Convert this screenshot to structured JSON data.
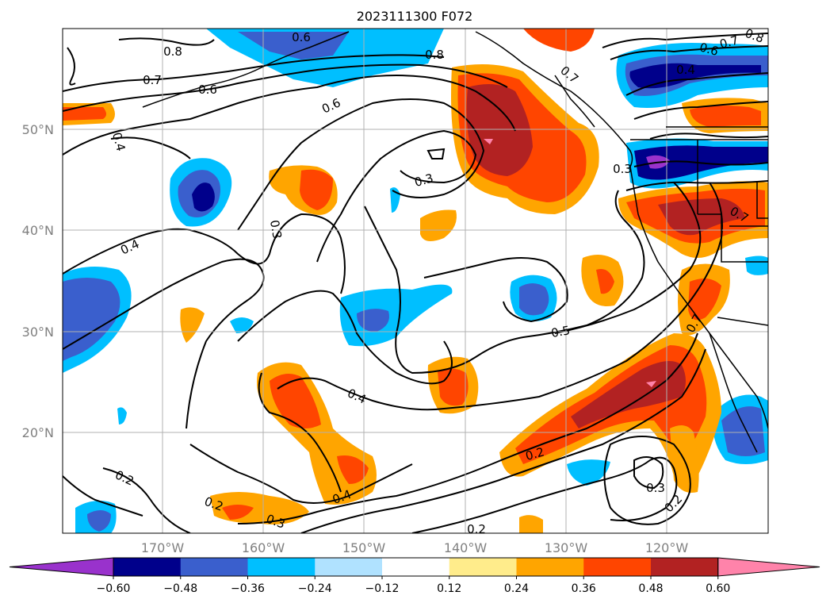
{
  "title": "2023111300 F072",
  "lat_labels": [
    "50°N",
    "40°N",
    "30°N",
    "20°N"
  ],
  "lon_labels": [
    "170°W",
    "160°W",
    "150°W",
    "140°W",
    "130°W",
    "120°W"
  ],
  "colorbar": {
    "ticks": [
      "−0.60",
      "−0.48",
      "−0.36",
      "−0.24",
      "−0.12",
      "0.12",
      "0.24",
      "0.36",
      "0.48",
      "0.60"
    ],
    "colors": [
      "#9932cc",
      "#00008b",
      "#3a5fcd",
      "#00bfff",
      "#b0e2ff",
      "#ffffff",
      "#ffec8b",
      "#ffa500",
      "#ff4500",
      "#b22222",
      "#ff83aa"
    ]
  },
  "contour_labels": [
    "0.8",
    "0.7",
    "0.6",
    "0.6",
    "0.8",
    "0.7",
    "0.4",
    "0.4",
    "0.3",
    "0.3",
    "0.5",
    "0.4",
    "0.2",
    "0.2",
    "0.3",
    "0.4",
    "0.2",
    "0.2",
    "0.3",
    "0.2",
    "0.6",
    "0.7",
    "0.8",
    "0.4",
    "0.6",
    "0.7",
    "0.7",
    "0.3"
  ]
}
